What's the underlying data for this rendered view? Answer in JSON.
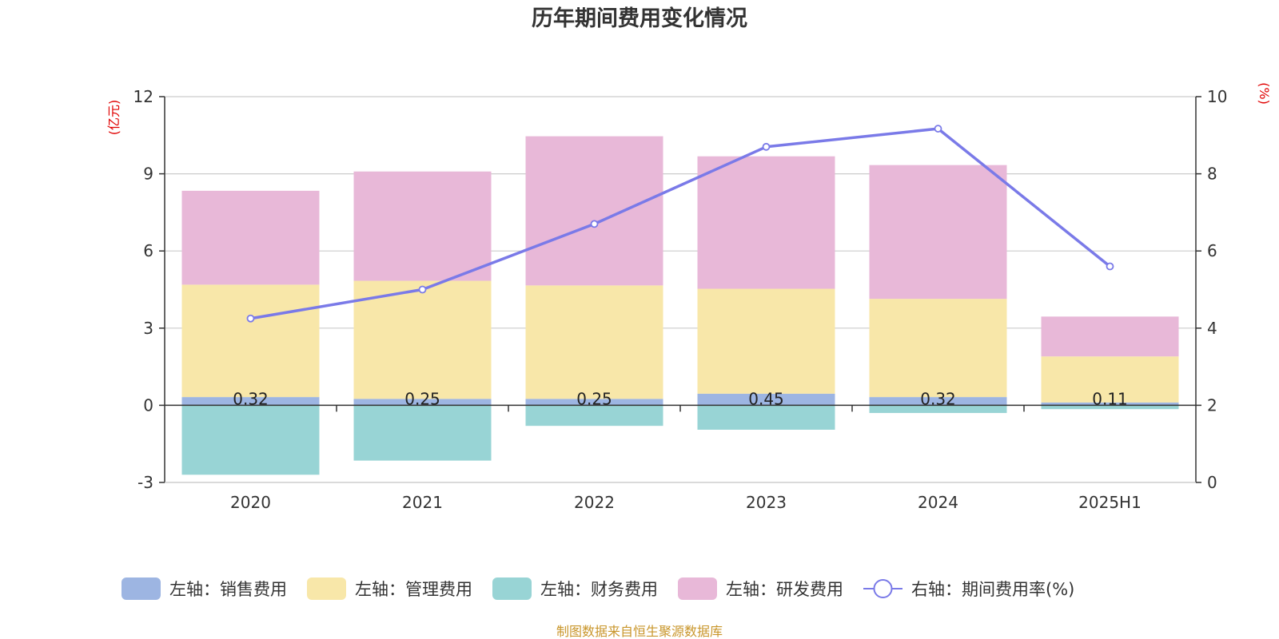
{
  "chart_data": {
    "type": "bar",
    "title": "历年期间费用变化情况",
    "categories": [
      "2020",
      "2021",
      "2022",
      "2023",
      "2024",
      "2025H1"
    ],
    "left_axis": {
      "unit": "(亿元)",
      "min": -3,
      "max": 12,
      "ticks": [
        -3,
        0,
        3,
        6,
        9,
        12
      ]
    },
    "right_axis": {
      "unit": "(%)",
      "min": 0,
      "max": 10,
      "ticks": [
        0,
        2,
        4,
        6,
        8,
        10
      ]
    },
    "series": [
      {
        "name": "左轴：销售费用",
        "type": "bar",
        "stack": true,
        "color": "#9db5e2",
        "values": [
          0.32,
          0.25,
          0.25,
          0.45,
          0.32,
          0.11
        ],
        "labels": [
          "0.32",
          "0.25",
          "0.25",
          "0.45",
          "0.32",
          "0.11"
        ]
      },
      {
        "name": "左轴：管理费用",
        "type": "bar",
        "stack": true,
        "color": "#f8e7a9",
        "values": [
          4.37,
          4.59,
          4.41,
          4.08,
          3.82,
          1.79
        ]
      },
      {
        "name": "左轴：财务费用",
        "type": "bar",
        "stack": true,
        "color": "#98d4d5",
        "values": [
          -2.7,
          -2.15,
          -0.8,
          -0.95,
          -0.3,
          -0.15
        ]
      },
      {
        "name": "左轴：研发费用",
        "type": "bar",
        "stack": true,
        "color": "#e8b8d8",
        "values": [
          3.65,
          4.25,
          5.8,
          5.15,
          5.2,
          1.55
        ]
      },
      {
        "name": "右轴：期间费用率(%)",
        "type": "line",
        "axis": "right",
        "color": "#7a7ae8",
        "values": [
          4.25,
          5.0,
          6.7,
          8.7,
          9.17,
          5.6
        ]
      }
    ],
    "grid": true,
    "legend_position": "bottom"
  },
  "source": "制图数据来自恒生聚源数据库"
}
